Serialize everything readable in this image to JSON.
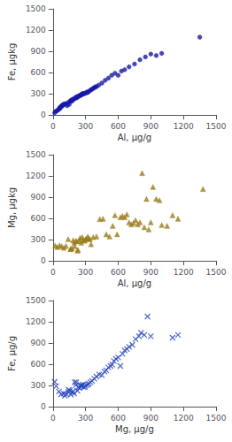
{
  "chart_data": [
    {
      "type": "scatter",
      "xlabel": "Al, μg/g",
      "ylabel": "Fe, μgkg",
      "color": "#1818a8",
      "marker": "circle",
      "xlim": [
        0,
        1500
      ],
      "ylim": [
        0,
        1500
      ],
      "xticks": [
        0,
        300,
        600,
        900,
        1200,
        1500
      ],
      "yticks": [
        0,
        300,
        600,
        900,
        1200,
        1500
      ],
      "grid": false,
      "x": [
        15,
        25,
        35,
        45,
        55,
        60,
        65,
        70,
        75,
        80,
        85,
        90,
        95,
        100,
        110,
        120,
        130,
        140,
        150,
        155,
        160,
        165,
        170,
        175,
        180,
        185,
        190,
        200,
        210,
        215,
        220,
        225,
        230,
        235,
        240,
        250,
        255,
        260,
        265,
        270,
        275,
        280,
        290,
        300,
        310,
        315,
        320,
        330,
        340,
        350,
        360,
        370,
        380,
        390,
        400,
        420,
        450,
        480,
        510,
        540,
        570,
        600,
        630,
        660,
        700,
        750,
        800,
        850,
        900,
        950,
        1000,
        1350
      ],
      "values": [
        30,
        50,
        55,
        70,
        80,
        100,
        90,
        110,
        120,
        130,
        125,
        140,
        145,
        150,
        155,
        160,
        130,
        175,
        150,
        190,
        195,
        200,
        210,
        195,
        220,
        215,
        225,
        230,
        250,
        240,
        255,
        250,
        260,
        265,
        270,
        280,
        275,
        285,
        290,
        300,
        295,
        305,
        300,
        310,
        320,
        315,
        325,
        330,
        345,
        355,
        365,
        375,
        385,
        395,
        400,
        420,
        450,
        490,
        520,
        560,
        590,
        560,
        620,
        640,
        680,
        720,
        780,
        820,
        860,
        840,
        870,
        1100
      ]
    },
    {
      "type": "scatter",
      "xlabel": "Al, μg/g",
      "ylabel": "Mg, μgkg",
      "color": "#9a7a18",
      "marker": "triangle",
      "xlim": [
        0,
        1500
      ],
      "ylim": [
        0,
        1500
      ],
      "xticks": [
        0,
        300,
        600,
        900,
        1200,
        1500
      ],
      "yticks": [
        0,
        300,
        600,
        900,
        1200,
        1500
      ],
      "grid": false,
      "x": [
        20,
        40,
        60,
        80,
        100,
        120,
        140,
        160,
        165,
        175,
        185,
        195,
        200,
        210,
        220,
        225,
        230,
        240,
        250,
        260,
        270,
        280,
        290,
        300,
        310,
        320,
        330,
        340,
        350,
        370,
        400,
        430,
        460,
        490,
        520,
        550,
        570,
        590,
        620,
        640,
        660,
        680,
        700,
        720,
        740,
        760,
        780,
        800,
        820,
        840,
        860,
        880,
        900,
        920,
        950,
        980,
        1000,
        1050,
        1100,
        1150,
        1380
      ],
      "values": [
        215,
        195,
        220,
        205,
        185,
        210,
        305,
        165,
        170,
        175,
        290,
        255,
        205,
        285,
        275,
        145,
        155,
        285,
        325,
        255,
        335,
        295,
        285,
        305,
        315,
        345,
        315,
        305,
        235,
        335,
        345,
        590,
        595,
        375,
        345,
        495,
        645,
        375,
        615,
        635,
        615,
        655,
        545,
        515,
        535,
        575,
        515,
        545,
        1240,
        475,
        875,
        445,
        545,
        1045,
        875,
        855,
        505,
        495,
        645,
        595,
        1015
      ]
    },
    {
      "type": "scatter",
      "xlabel": "Mg, μg/g",
      "ylabel": "Fe, μg/g",
      "color": "#2244bb",
      "marker": "x",
      "xlim": [
        0,
        1500
      ],
      "ylim": [
        0,
        1500
      ],
      "xticks": [
        0,
        300,
        600,
        900,
        1200,
        1500
      ],
      "yticks": [
        0,
        300,
        600,
        900,
        1200,
        1500
      ],
      "grid": false,
      "x": [
        15,
        30,
        55,
        75,
        100,
        110,
        125,
        140,
        145,
        155,
        165,
        175,
        185,
        195,
        200,
        210,
        215,
        225,
        235,
        245,
        255,
        260,
        270,
        275,
        285,
        295,
        305,
        320,
        330,
        345,
        360,
        380,
        400,
        425,
        450,
        475,
        490,
        510,
        530,
        545,
        560,
        580,
        600,
        620,
        640,
        660,
        680,
        700,
        730,
        760,
        790,
        810,
        840,
        870,
        900,
        1100,
        1150
      ],
      "values": [
        350,
        290,
        215,
        175,
        185,
        155,
        175,
        210,
        240,
        225,
        170,
        205,
        215,
        185,
        345,
        305,
        345,
        225,
        275,
        265,
        305,
        285,
        295,
        315,
        275,
        285,
        305,
        310,
        325,
        345,
        365,
        395,
        425,
        455,
        445,
        495,
        515,
        555,
        575,
        595,
        645,
        675,
        695,
        575,
        745,
        795,
        815,
        845,
        875,
        955,
        995,
        1045,
        1015,
        1275,
        995,
        975,
        1015
      ]
    }
  ]
}
